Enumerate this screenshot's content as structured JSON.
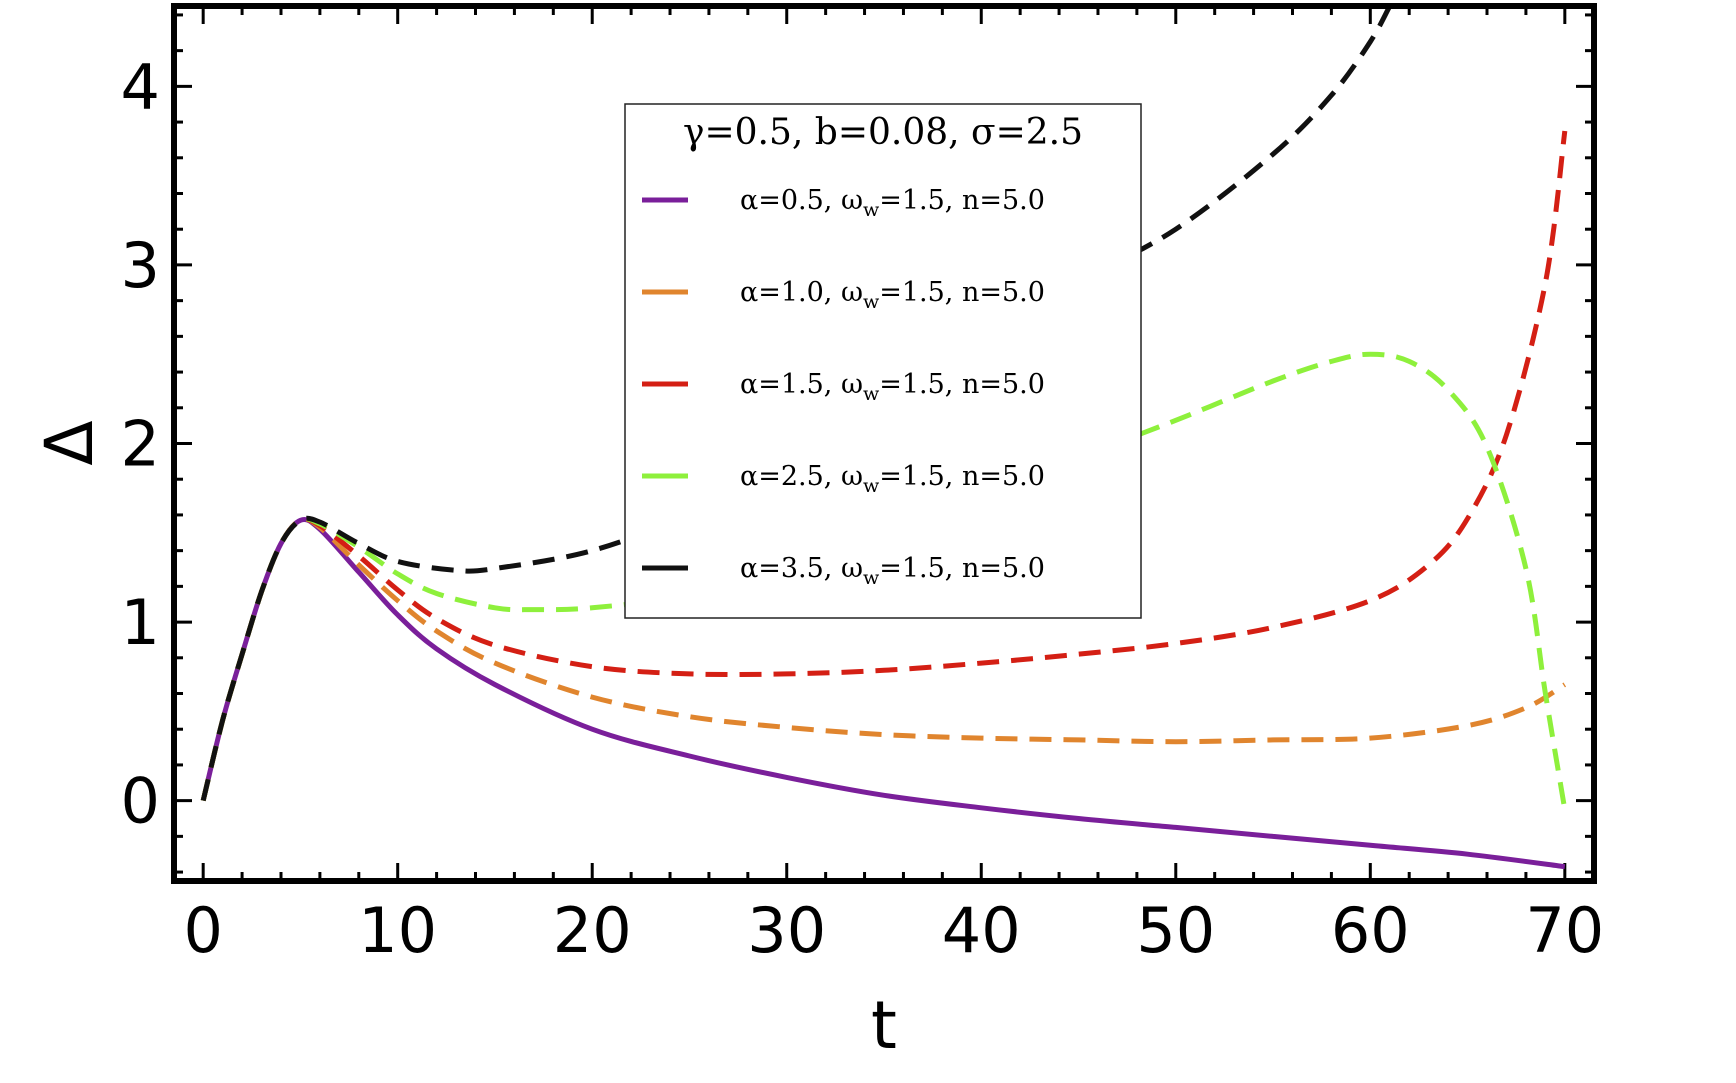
{
  "chart_data": {
    "type": "line",
    "xlabel": "t",
    "ylabel": "Δ",
    "xlim": [
      -1.5,
      71.5
    ],
    "ylim": [
      -0.45,
      4.45
    ],
    "x_ticks": [
      0,
      10,
      20,
      30,
      40,
      50,
      60,
      70
    ],
    "y_ticks": [
      0,
      1,
      2,
      3,
      4
    ],
    "grid": false,
    "legend": {
      "title": "γ=0.5, b=0.08, σ=2.5",
      "placement": "top-center"
    },
    "series": [
      {
        "name": "α=0.5, ω_w=1.5, n=5.0",
        "label_parts": [
          "α=0.5, ω",
          "w",
          "=1.5, n=5.0"
        ],
        "color": "#7a1f9a",
        "dashed": false,
        "points": [
          [
            0,
            0
          ],
          [
            1,
            0.45
          ],
          [
            2,
            0.82
          ],
          [
            3,
            1.17
          ],
          [
            4,
            1.44
          ],
          [
            5,
            1.57
          ],
          [
            6,
            1.52
          ],
          [
            8,
            1.28
          ],
          [
            10,
            1.04
          ],
          [
            12,
            0.85
          ],
          [
            15,
            0.65
          ],
          [
            20,
            0.4
          ],
          [
            25,
            0.25
          ],
          [
            30,
            0.13
          ],
          [
            35,
            0.03
          ],
          [
            40,
            -0.04
          ],
          [
            45,
            -0.1
          ],
          [
            50,
            -0.15
          ],
          [
            55,
            -0.2
          ],
          [
            60,
            -0.25
          ],
          [
            65,
            -0.3
          ],
          [
            70,
            -0.37
          ]
        ]
      },
      {
        "name": "α=1.0, ω_w=1.5, n=5.0",
        "label_parts": [
          "α=1.0, ω",
          "w",
          "=1.5, n=5.0"
        ],
        "color": "#e0852e",
        "dashed": true,
        "points": [
          [
            0,
            0
          ],
          [
            1,
            0.45
          ],
          [
            2,
            0.82
          ],
          [
            3,
            1.17
          ],
          [
            4,
            1.44
          ],
          [
            5,
            1.57
          ],
          [
            6,
            1.53
          ],
          [
            8,
            1.32
          ],
          [
            10,
            1.12
          ],
          [
            12,
            0.95
          ],
          [
            15,
            0.77
          ],
          [
            20,
            0.58
          ],
          [
            25,
            0.47
          ],
          [
            30,
            0.41
          ],
          [
            35,
            0.37
          ],
          [
            40,
            0.35
          ],
          [
            45,
            0.34
          ],
          [
            50,
            0.33
          ],
          [
            55,
            0.34
          ],
          [
            60,
            0.35
          ],
          [
            65,
            0.42
          ],
          [
            68,
            0.52
          ],
          [
            70,
            0.65
          ]
        ]
      },
      {
        "name": "α=1.5, ω_w=1.5, n=5.0",
        "label_parts": [
          "α=1.5, ω",
          "w",
          "=1.5, n=5.0"
        ],
        "color": "#d41f14",
        "dashed": true,
        "points": [
          [
            0,
            0
          ],
          [
            1,
            0.45
          ],
          [
            2,
            0.82
          ],
          [
            3,
            1.17
          ],
          [
            4,
            1.44
          ],
          [
            5,
            1.57
          ],
          [
            6,
            1.54
          ],
          [
            8,
            1.37
          ],
          [
            10,
            1.18
          ],
          [
            12,
            1.02
          ],
          [
            15,
            0.87
          ],
          [
            20,
            0.75
          ],
          [
            25,
            0.71
          ],
          [
            30,
            0.71
          ],
          [
            35,
            0.73
          ],
          [
            40,
            0.77
          ],
          [
            45,
            0.82
          ],
          [
            50,
            0.88
          ],
          [
            55,
            0.97
          ],
          [
            60,
            1.12
          ],
          [
            63,
            1.32
          ],
          [
            65,
            1.58
          ],
          [
            67,
            2.05
          ],
          [
            69,
            2.9
          ],
          [
            70,
            3.75
          ]
        ]
      },
      {
        "name": "α=2.5, ω_w=1.5, n=5.0",
        "label_parts": [
          "α=2.5, ω",
          "w",
          "=1.5, n=5.0"
        ],
        "color": "#8ef03c",
        "dashed": true,
        "points": [
          [
            0,
            0
          ],
          [
            1,
            0.45
          ],
          [
            2,
            0.82
          ],
          [
            3,
            1.17
          ],
          [
            4,
            1.44
          ],
          [
            5,
            1.57
          ],
          [
            6,
            1.55
          ],
          [
            8,
            1.42
          ],
          [
            10,
            1.27
          ],
          [
            12,
            1.16
          ],
          [
            15,
            1.08
          ],
          [
            17,
            1.07
          ],
          [
            20,
            1.08
          ],
          [
            25,
            1.15
          ],
          [
            30,
            1.3
          ],
          [
            35,
            1.48
          ],
          [
            40,
            1.7
          ],
          [
            45,
            1.92
          ],
          [
            50,
            2.13
          ],
          [
            55,
            2.35
          ],
          [
            58,
            2.46
          ],
          [
            60,
            2.5
          ],
          [
            62,
            2.46
          ],
          [
            64,
            2.3
          ],
          [
            66,
            1.98
          ],
          [
            68,
            1.3
          ],
          [
            69,
            0.6
          ],
          [
            70,
            -0.05
          ]
        ]
      },
      {
        "name": "α=3.5, ω_w=1.5, n=5.0",
        "label_parts": [
          "α=3.5, ω",
          "w",
          "=1.5, n=5.0"
        ],
        "color": "#111111",
        "dashed": true,
        "points": [
          [
            0,
            0
          ],
          [
            1,
            0.45
          ],
          [
            2,
            0.82
          ],
          [
            3,
            1.17
          ],
          [
            4,
            1.44
          ],
          [
            5,
            1.57
          ],
          [
            6,
            1.56
          ],
          [
            8,
            1.44
          ],
          [
            10,
            1.34
          ],
          [
            13,
            1.29
          ],
          [
            15,
            1.3
          ],
          [
            20,
            1.4
          ],
          [
            25,
            1.6
          ],
          [
            30,
            1.85
          ],
          [
            35,
            2.15
          ],
          [
            40,
            2.55
          ],
          [
            45,
            2.9
          ],
          [
            50,
            3.2
          ],
          [
            55,
            3.62
          ],
          [
            58,
            3.95
          ],
          [
            60,
            4.25
          ],
          [
            61,
            4.45
          ]
        ]
      }
    ]
  }
}
